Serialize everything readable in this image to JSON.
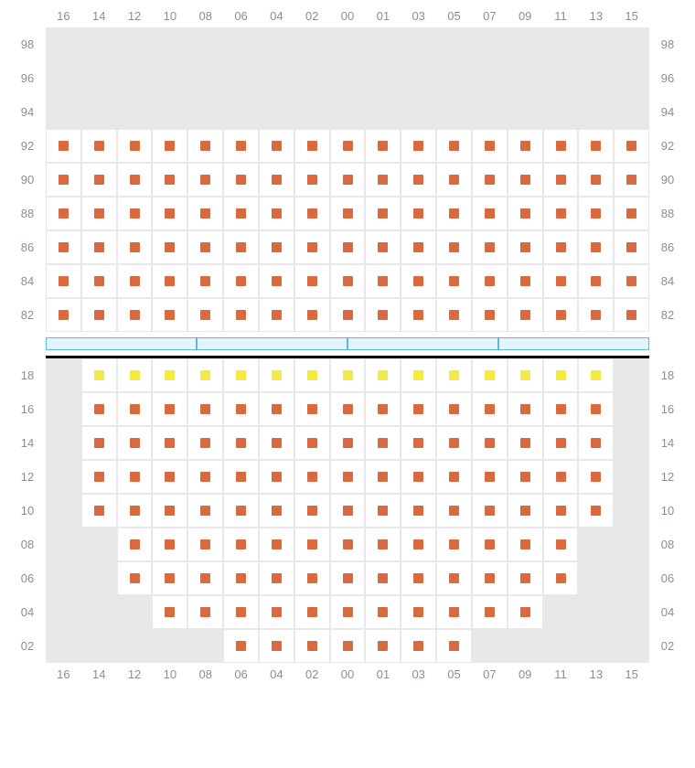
{
  "colors": {
    "seat_orange": "#d9693f",
    "seat_yellow": "#f5e943",
    "empty_bg": "#e8e8e8",
    "available_bg": "#ffffff",
    "grid_border": "#e8e8e8",
    "label_text": "#8a8f94",
    "divider_fill": "#e3f4fd",
    "divider_border": "#5ab8e8",
    "black_bar": "#000000"
  },
  "cell_size": {
    "width": 39,
    "height": 37
  },
  "seat_size": 11,
  "columns": [
    "16",
    "14",
    "12",
    "10",
    "08",
    "06",
    "04",
    "02",
    "00",
    "01",
    "03",
    "05",
    "07",
    "09",
    "11",
    "13",
    "15"
  ],
  "upper_section": {
    "rows": [
      {
        "label": "98",
        "cells": [
          "e",
          "e",
          "e",
          "e",
          "e",
          "e",
          "e",
          "e",
          "e",
          "e",
          "e",
          "e",
          "e",
          "e",
          "e",
          "e",
          "e"
        ]
      },
      {
        "label": "96",
        "cells": [
          "e",
          "e",
          "e",
          "e",
          "e",
          "e",
          "e",
          "e",
          "e",
          "e",
          "e",
          "e",
          "e",
          "e",
          "e",
          "e",
          "e"
        ]
      },
      {
        "label": "94",
        "cells": [
          "e",
          "e",
          "e",
          "e",
          "e",
          "e",
          "e",
          "e",
          "e",
          "e",
          "e",
          "e",
          "e",
          "e",
          "e",
          "e",
          "e"
        ]
      },
      {
        "label": "92",
        "cells": [
          "o",
          "o",
          "o",
          "o",
          "o",
          "o",
          "o",
          "o",
          "o",
          "o",
          "o",
          "o",
          "o",
          "o",
          "o",
          "o",
          "o"
        ]
      },
      {
        "label": "90",
        "cells": [
          "o",
          "o",
          "o",
          "o",
          "o",
          "o",
          "o",
          "o",
          "o",
          "o",
          "o",
          "o",
          "o",
          "o",
          "o",
          "o",
          "o"
        ]
      },
      {
        "label": "88",
        "cells": [
          "o",
          "o",
          "o",
          "o",
          "o",
          "o",
          "o",
          "o",
          "o",
          "o",
          "o",
          "o",
          "o",
          "o",
          "o",
          "o",
          "o"
        ]
      },
      {
        "label": "86",
        "cells": [
          "o",
          "o",
          "o",
          "o",
          "o",
          "o",
          "o",
          "o",
          "o",
          "o",
          "o",
          "o",
          "o",
          "o",
          "o",
          "o",
          "o"
        ]
      },
      {
        "label": "84",
        "cells": [
          "o",
          "o",
          "o",
          "o",
          "o",
          "o",
          "o",
          "o",
          "o",
          "o",
          "o",
          "o",
          "o",
          "o",
          "o",
          "o",
          "o"
        ]
      },
      {
        "label": "82",
        "cells": [
          "o",
          "o",
          "o",
          "o",
          "o",
          "o",
          "o",
          "o",
          "o",
          "o",
          "o",
          "o",
          "o",
          "o",
          "o",
          "o",
          "o"
        ]
      }
    ]
  },
  "divider_segments": 4,
  "lower_section": {
    "rows": [
      {
        "label": "18",
        "cells": [
          "e",
          "y",
          "y",
          "y",
          "y",
          "y",
          "y",
          "y",
          "y",
          "y",
          "y",
          "y",
          "y",
          "y",
          "y",
          "y",
          "e"
        ]
      },
      {
        "label": "16",
        "cells": [
          "e",
          "o",
          "o",
          "o",
          "o",
          "o",
          "o",
          "o",
          "o",
          "o",
          "o",
          "o",
          "o",
          "o",
          "o",
          "o",
          "e"
        ]
      },
      {
        "label": "14",
        "cells": [
          "e",
          "o",
          "o",
          "o",
          "o",
          "o",
          "o",
          "o",
          "o",
          "o",
          "o",
          "o",
          "o",
          "o",
          "o",
          "o",
          "e"
        ]
      },
      {
        "label": "12",
        "cells": [
          "e",
          "o",
          "o",
          "o",
          "o",
          "o",
          "o",
          "o",
          "o",
          "o",
          "o",
          "o",
          "o",
          "o",
          "o",
          "o",
          "e"
        ]
      },
      {
        "label": "10",
        "cells": [
          "e",
          "o",
          "o",
          "o",
          "o",
          "o",
          "o",
          "o",
          "o",
          "o",
          "o",
          "o",
          "o",
          "o",
          "o",
          "o",
          "e"
        ]
      },
      {
        "label": "08",
        "cells": [
          "e",
          "e",
          "o",
          "o",
          "o",
          "o",
          "o",
          "o",
          "o",
          "o",
          "o",
          "o",
          "o",
          "o",
          "o",
          "e",
          "e"
        ]
      },
      {
        "label": "06",
        "cells": [
          "e",
          "e",
          "o",
          "o",
          "o",
          "o",
          "o",
          "o",
          "o",
          "o",
          "o",
          "o",
          "o",
          "o",
          "o",
          "e",
          "e"
        ]
      },
      {
        "label": "04",
        "cells": [
          "e",
          "e",
          "e",
          "o",
          "o",
          "o",
          "o",
          "o",
          "o",
          "o",
          "o",
          "o",
          "o",
          "o",
          "e",
          "e",
          "e"
        ]
      },
      {
        "label": "02",
        "cells": [
          "e",
          "e",
          "e",
          "e",
          "e",
          "o",
          "o",
          "o",
          "o",
          "o",
          "o",
          "o",
          "e",
          "e",
          "e",
          "e",
          "e"
        ]
      }
    ]
  }
}
